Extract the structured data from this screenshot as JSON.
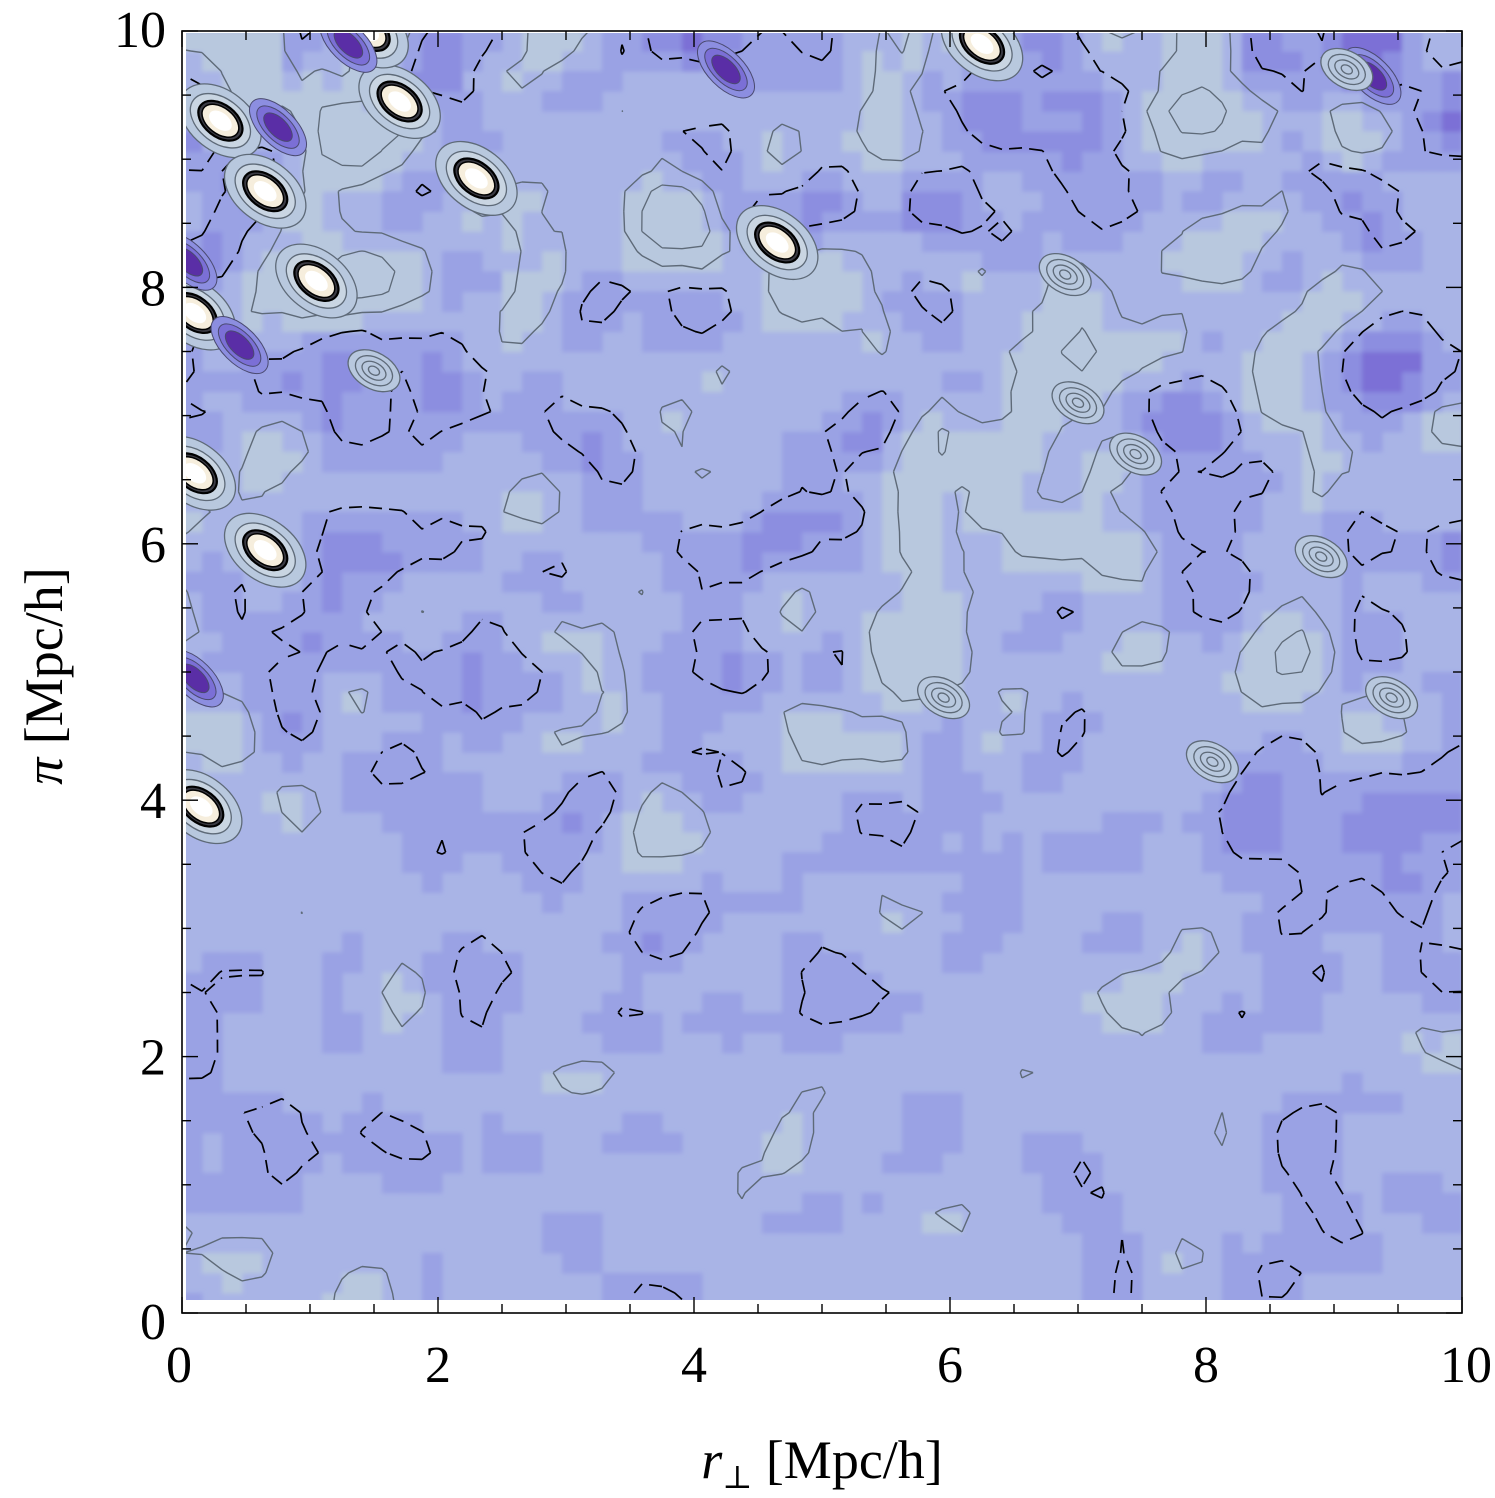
{
  "chart_data": {
    "type": "heatmap",
    "subtype": "filled-contour",
    "title": "",
    "xlabel": "r⊥ [Mpc/h]",
    "xlabel_parts": {
      "symbol": "r",
      "subscript": "⊥",
      "unit": "[Mpc/h]"
    },
    "ylabel": "π [Mpc/h]",
    "ylabel_parts": {
      "symbol": "π",
      "unit": "[Mpc/h]"
    },
    "xlim": [
      0,
      10
    ],
    "ylim": [
      0,
      10
    ],
    "x_ticks": [
      0,
      2,
      4,
      6,
      8,
      10
    ],
    "x_tick_labels": [
      "0",
      "2",
      "4",
      "6",
      "8",
      "10"
    ],
    "y_ticks": [
      0,
      2,
      4,
      6,
      8,
      10
    ],
    "y_tick_labels": [
      "0",
      "2",
      "4",
      "6",
      "8",
      "10"
    ],
    "minor_tick_step": 0.5,
    "grid": false,
    "legend": "none",
    "contour_styles": {
      "positive_levels": "solid gray",
      "negative_levels": "dashed black"
    },
    "palette": [
      "#a9b4e6",
      "#9aa2e4",
      "#8c8ee0",
      "#7b6fd6",
      "#5a2ea6",
      "#b8c8de",
      "#f6eedd"
    ],
    "features": [
      {
        "kind": "peak",
        "x": 0.3,
        "y": 9.3,
        "level": "high"
      },
      {
        "kind": "peak",
        "x": 0.65,
        "y": 8.75,
        "level": "high"
      },
      {
        "kind": "peak",
        "x": 1.05,
        "y": 8.05,
        "level": "high"
      },
      {
        "kind": "peak",
        "x": 0.1,
        "y": 7.8,
        "level": "high"
      },
      {
        "kind": "peak",
        "x": 0.1,
        "y": 6.55,
        "level": "high"
      },
      {
        "kind": "peak",
        "x": 0.65,
        "y": 5.95,
        "level": "high"
      },
      {
        "kind": "peak",
        "x": 0.15,
        "y": 3.95,
        "level": "high"
      },
      {
        "kind": "peak",
        "x": 2.3,
        "y": 8.85,
        "level": "high"
      },
      {
        "kind": "peak",
        "x": 1.7,
        "y": 9.45,
        "level": "high"
      },
      {
        "kind": "peak",
        "x": 4.65,
        "y": 8.35,
        "level": "high"
      },
      {
        "kind": "peak",
        "x": 6.25,
        "y": 9.9,
        "level": "high"
      },
      {
        "kind": "peak",
        "x": 1.45,
        "y": 10.0,
        "level": "high"
      },
      {
        "kind": "trough",
        "x": 0.75,
        "y": 9.25,
        "level": "low"
      },
      {
        "kind": "trough",
        "x": 0.45,
        "y": 7.55,
        "level": "low"
      },
      {
        "kind": "trough",
        "x": 0.05,
        "y": 8.2,
        "level": "low"
      },
      {
        "kind": "trough",
        "x": 1.3,
        "y": 9.9,
        "level": "low"
      },
      {
        "kind": "trough",
        "x": 4.25,
        "y": 9.7,
        "level": "low"
      },
      {
        "kind": "trough",
        "x": 9.3,
        "y": 9.65,
        "level": "low"
      },
      {
        "kind": "trough",
        "x": 0.1,
        "y": 4.95,
        "level": "low"
      },
      {
        "kind": "peak",
        "x": 9.1,
        "y": 9.7,
        "level": "mid"
      },
      {
        "kind": "peak",
        "x": 6.9,
        "y": 8.1,
        "level": "mid"
      },
      {
        "kind": "peak",
        "x": 7.0,
        "y": 7.1,
        "level": "mid"
      },
      {
        "kind": "peak",
        "x": 7.45,
        "y": 6.7,
        "level": "mid"
      },
      {
        "kind": "peak",
        "x": 8.9,
        "y": 5.9,
        "level": "mid"
      },
      {
        "kind": "peak",
        "x": 9.45,
        "y": 4.8,
        "level": "mid"
      },
      {
        "kind": "peak",
        "x": 8.05,
        "y": 4.3,
        "level": "mid"
      },
      {
        "kind": "peak",
        "x": 5.95,
        "y": 4.8,
        "level": "mid"
      },
      {
        "kind": "peak",
        "x": 1.5,
        "y": 7.35,
        "level": "mid"
      }
    ]
  }
}
